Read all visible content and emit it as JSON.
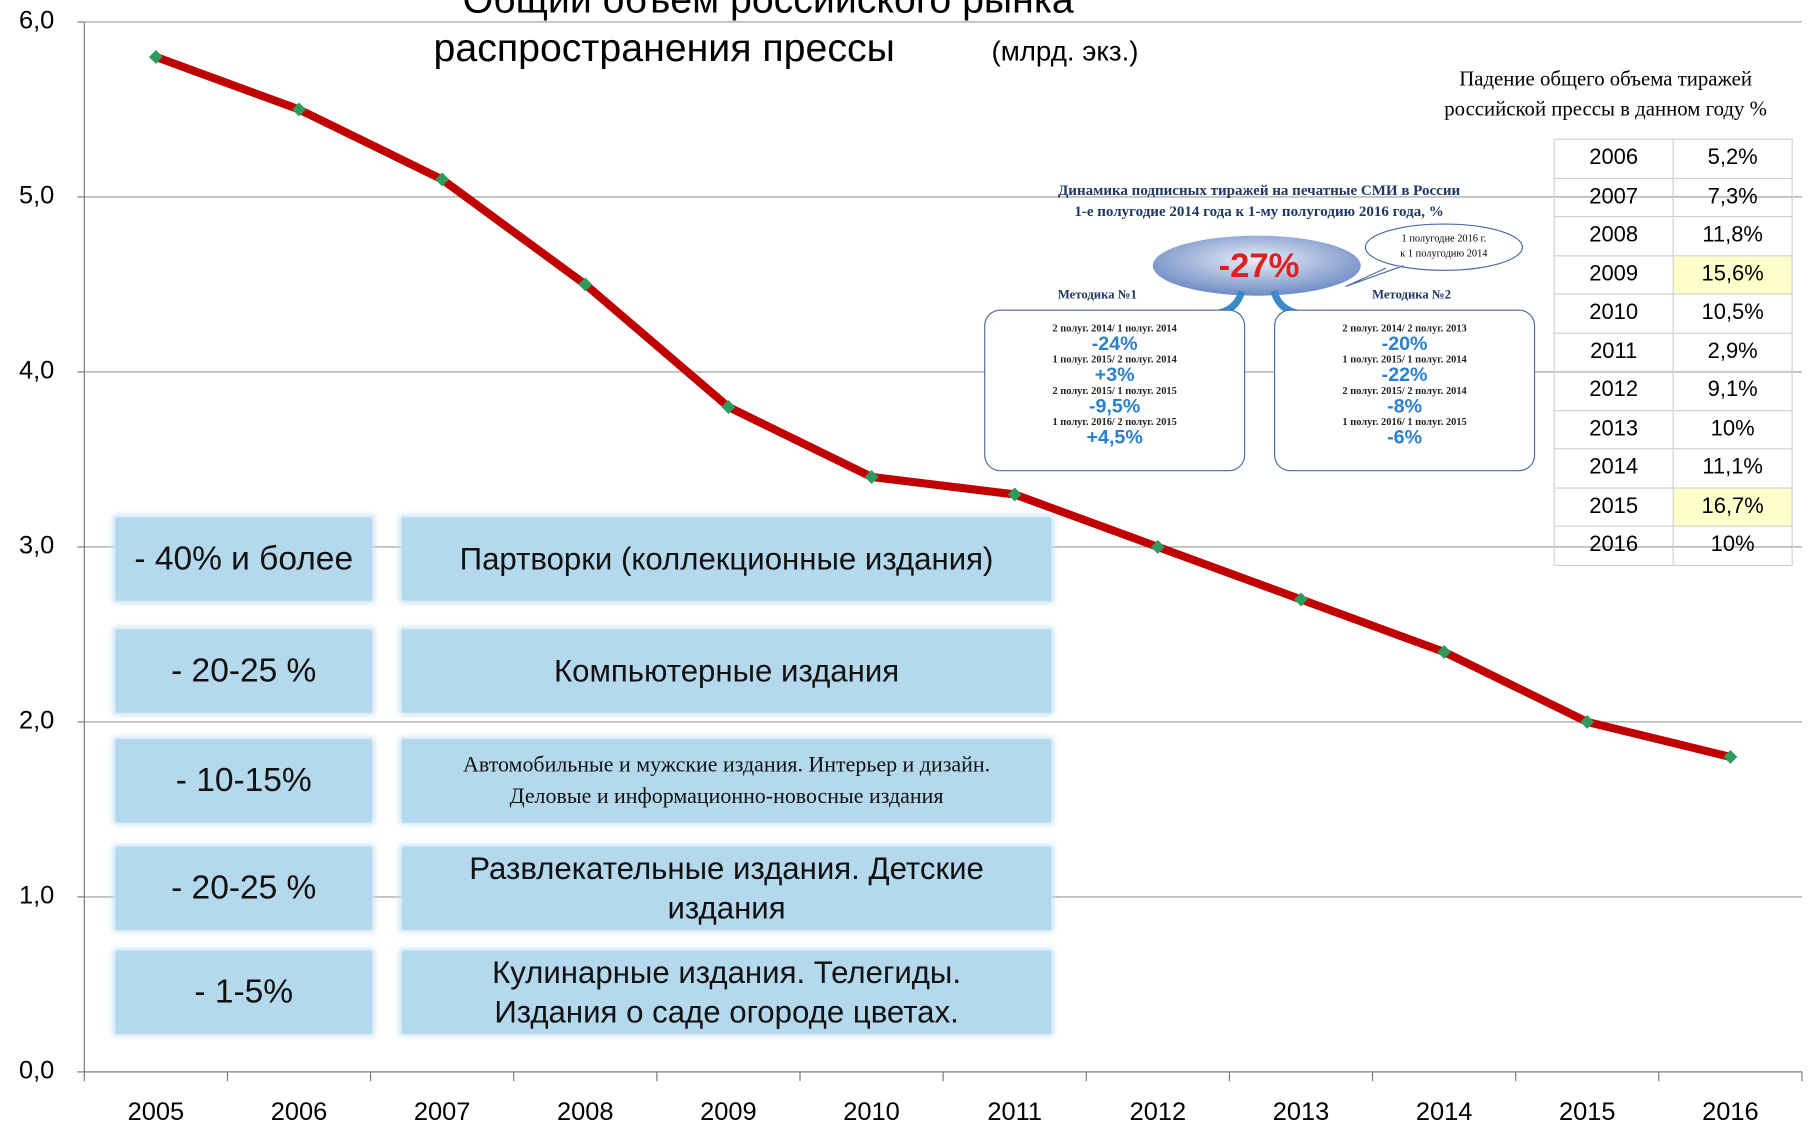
{
  "chart_data": {
    "type": "line",
    "title": [
      "Общий объем российского рынка",
      "распространения прессы"
    ],
    "units": "(млрд. экз.)",
    "categories": [
      "2005",
      "2006",
      "2007",
      "2008",
      "2009",
      "2010",
      "2011",
      "2012",
      "2013",
      "2014",
      "2015",
      "2016"
    ],
    "values": [
      5.8,
      5.5,
      5.1,
      4.5,
      3.8,
      3.4,
      3.3,
      3.0,
      2.7,
      2.4,
      2.0,
      1.8
    ],
    "color": "#c00000",
    "marker_color": "#2e9a5e",
    "ylim": [
      0,
      6
    ],
    "yticks": [
      {
        "value": 0,
        "label": "0,0"
      },
      {
        "value": 1,
        "label": "1,0"
      },
      {
        "value": 2,
        "label": "2,0"
      },
      {
        "value": 3,
        "label": "3,0"
      },
      {
        "value": 4,
        "label": "4,0"
      },
      {
        "value": 5,
        "label": "5,0"
      },
      {
        "value": 6,
        "label": "6,0"
      }
    ],
    "grid": true
  },
  "segments": [
    {
      "change": "- 40% и более",
      "label": "Партворки (коллекционные издания)"
    },
    {
      "change": "- 20-25 %",
      "label": "Компьютерные издания"
    },
    {
      "change": "- 10-15%",
      "label": "Автомобильные и мужские издания. Интерьер и дизайн. Деловые и информационно-новосные издания"
    },
    {
      "change": "- 20-25 %",
      "label": "Развлекательные издания. Детские издания"
    },
    {
      "change": "- 1-5%",
      "label": "Кулинарные издания. Телегиды. Издания о саде огороде цветах."
    }
  ],
  "decline_table": {
    "title": [
      "Падение общего объема тиражей",
      "российской прессы в данном году %"
    ],
    "rows": [
      [
        "2006",
        "5,2%"
      ],
      [
        "2007",
        "7,3%"
      ],
      [
        "2008",
        "11,8%"
      ],
      [
        "2009",
        "15,6%"
      ],
      [
        "2010",
        "10,5%"
      ],
      [
        "2011",
        "2,9%"
      ],
      [
        "2012",
        "9,1%"
      ],
      [
        "2013",
        "10%"
      ],
      [
        "2014",
        "11,1%"
      ],
      [
        "2015",
        "16,7%"
      ],
      [
        "2016",
        "10%"
      ]
    ]
  },
  "subscription": {
    "title": [
      "Динамика подписных тиражей на печатные СМИ в России",
      "1-е полугодие 2014 года к 1-му полугодию 2016 года, %"
    ],
    "total": "-27%",
    "total_note": [
      "1 полугодие 2016 г.",
      "к 1 полугодию 2014"
    ],
    "methods": [
      {
        "name": "Методика №1",
        "items": [
          [
            "2 полуг. 2014/ 1 полуг. 2014",
            "-24%"
          ],
          [
            "1 полуг. 2015/ 2 полуг. 2014",
            "+3%"
          ],
          [
            "2 полуг. 2015/ 1 полуг. 2015",
            "-9,5%"
          ],
          [
            "1 полуг. 2016/ 2 полуг. 2015",
            "+4,5%"
          ]
        ]
      },
      {
        "name": "Методика №2",
        "items": [
          [
            "2 полуг. 2014/ 2 полуг. 2013",
            "-20%"
          ],
          [
            "1 полуг. 2015/ 1 полуг. 2014",
            "-22%"
          ],
          [
            "2 полуг. 2015/ 2 полуг. 2014",
            "-8%"
          ],
          [
            "1 полуг. 2016/ 1 полуг. 2015",
            "-6%"
          ]
        ]
      }
    ]
  }
}
